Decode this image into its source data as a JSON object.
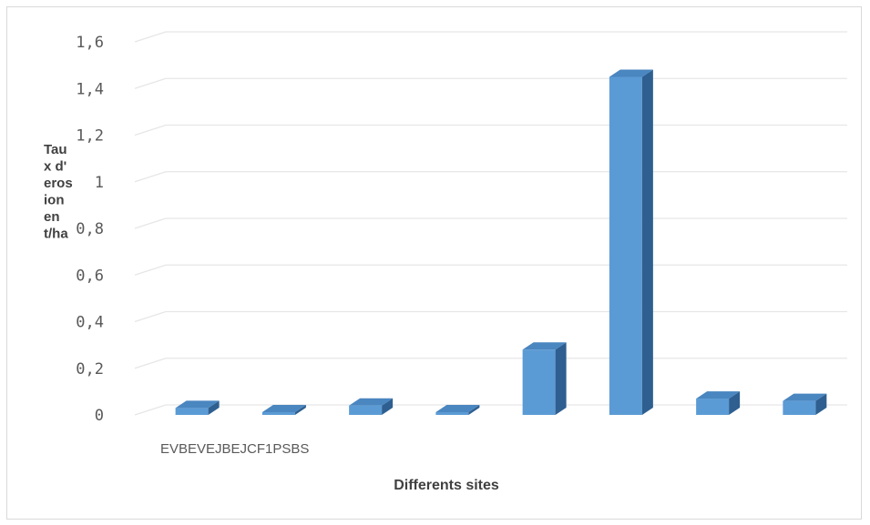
{
  "chart_data": {
    "type": "bar",
    "categories": [
      "EV",
      "BE",
      "VE",
      "JB",
      "EJ",
      "CF1",
      "PS",
      "BS"
    ],
    "values": [
      0.03,
      0.01,
      0.04,
      0.01,
      0.28,
      1.45,
      0.07,
      0.06
    ],
    "series": [
      {
        "values": [
          0.03,
          0.01,
          0.04,
          0.01,
          0.28,
          1.45,
          0.07,
          0.06
        ]
      }
    ],
    "ylim": [
      0,
      1.6
    ],
    "ticks": [
      "0",
      "0,2",
      "0,4",
      "0,6",
      "0,8",
      "1",
      "1,2",
      "1,4",
      "1,6"
    ],
    "category_axis_text": "EVBEVEJBEJCF1PSBS",
    "xlabel": "Differents sites",
    "ylabel_lines": [
      "Tau",
      "x d'",
      "eros",
      "ion",
      "en",
      "t/ha"
    ],
    "grid": true,
    "style": "3d-column",
    "colors": {
      "bar_front": "#5b9bd5",
      "bar_side": "#2e5f90",
      "bar_top": "#4a86c0",
      "grid": "#e6e6e6"
    }
  }
}
